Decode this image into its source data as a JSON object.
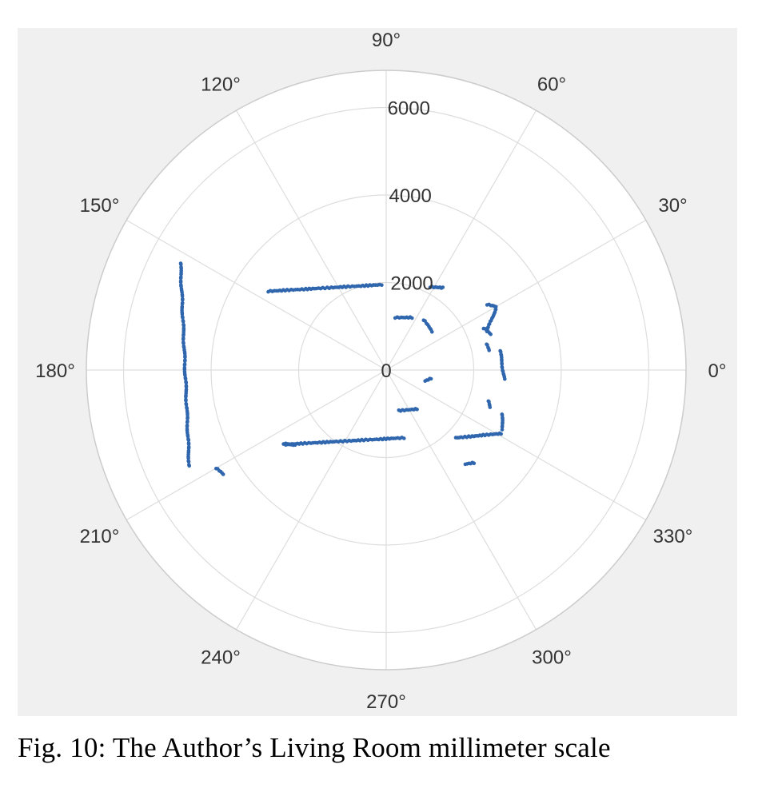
{
  "figure": {
    "caption": "Fig. 10: The Author’s Living Room millimeter scale"
  },
  "colors": {
    "panel_background": "#f0f0f0",
    "plot_background": "#ffffff",
    "grid": "#dddddd",
    "outer_circle": "#cccccc",
    "points": "#2f66ad"
  },
  "chart_data": {
    "type": "scatter",
    "projection": "polar",
    "angle_unit": "degrees",
    "theta_ticks": [
      "0°",
      "30°",
      "60°",
      "90°",
      "120°",
      "150°",
      "180°",
      "210°",
      "240°",
      "270°",
      "300°",
      "330°"
    ],
    "r_ticks": [
      "0",
      "2000",
      "4000",
      "6000"
    ],
    "rlim": [
      0,
      6850
    ],
    "grid": true,
    "walls_xy_mm": [
      {
        "from": [
          -2700,
          1800
        ],
        "to": [
          -100,
          1950
        ],
        "step": 45
      },
      {
        "from": [
          1000,
          1900
        ],
        "to": [
          1300,
          1880
        ],
        "step": 40
      },
      {
        "from": [
          200,
          1200
        ],
        "to": [
          600,
          1200
        ],
        "step": 45
      },
      {
        "from": [
          850,
          1150
        ],
        "to": [
          1050,
          880
        ],
        "step": 45
      },
      {
        "from": [
          2300,
          1500
        ],
        "to": [
          2500,
          1450
        ],
        "step": 40
      },
      {
        "from": [
          2500,
          1400
        ],
        "to": [
          2300,
          880
        ],
        "step": 40
      },
      {
        "from": [
          2220,
          960
        ],
        "to": [
          2380,
          820
        ],
        "step": 40
      },
      {
        "from": [
          2290,
          600
        ],
        "to": [
          2340,
          450
        ],
        "step": 40
      },
      {
        "from": [
          2600,
          450
        ],
        "to": [
          2700,
          -200
        ],
        "step": 40
      },
      {
        "from": [
          2330,
          -700
        ],
        "to": [
          2360,
          -850
        ],
        "step": 40
      },
      {
        "from": [
          2640,
          -1000
        ],
        "to": [
          2660,
          -1350
        ],
        "step": 40
      },
      {
        "from": [
          2620,
          -1450
        ],
        "to": [
          1600,
          -1550
        ],
        "step": 40
      },
      {
        "from": [
          2000,
          -2120
        ],
        "to": [
          1800,
          -2150
        ],
        "step": 40
      },
      {
        "from": [
          700,
          -890
        ],
        "to": [
          300,
          -930
        ],
        "step": 40
      },
      {
        "from": [
          1020,
          -190
        ],
        "to": [
          880,
          -250
        ],
        "step": 40
      },
      {
        "from": [
          -2300,
          -1700
        ],
        "to": [
          400,
          -1550
        ],
        "step": 45
      },
      {
        "from": [
          -2350,
          -1680
        ],
        "to": [
          -2080,
          -1720
        ],
        "step": 45
      },
      {
        "from": [
          -4700,
          2450
        ],
        "to": [
          -4500,
          -2200
        ],
        "step": 45
      },
      {
        "from": [
          -3890,
          -2240
        ],
        "to": [
          -3730,
          -2380
        ],
        "step": 40
      }
    ]
  }
}
